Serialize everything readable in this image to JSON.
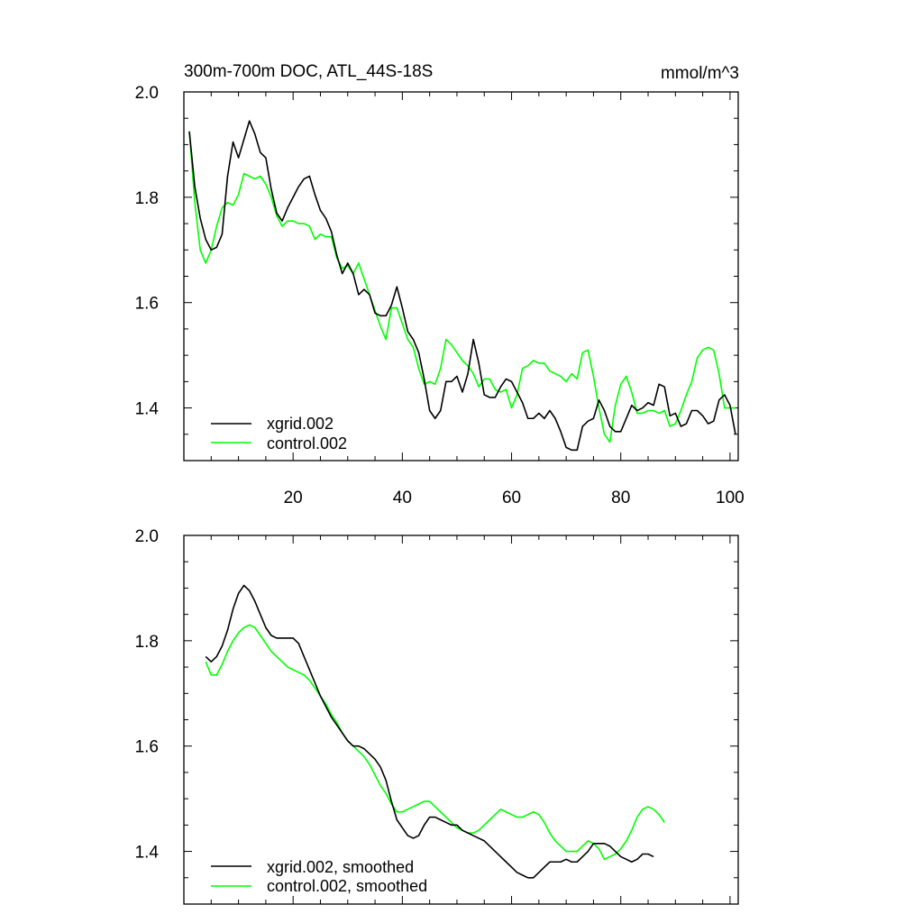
{
  "chart_data": [
    {
      "type": "line",
      "title": "300m-700m DOC, ATL_44S-18S",
      "units": "mmol/m^3",
      "xlabel": "",
      "ylabel": "",
      "xlim": [
        0,
        101.5
      ],
      "ylim": [
        1.3,
        2.0
      ],
      "xticks": [
        20,
        40,
        60,
        80,
        100
      ],
      "yticks": [
        1.4,
        1.6,
        1.8,
        2.0
      ],
      "ytick_labels": [
        "1.4",
        "1.6",
        "1.8",
        "2.0"
      ],
      "xtick_labels": [
        "20",
        "40",
        "60",
        "80",
        "100"
      ],
      "legend_position": "bottom-left",
      "series": [
        {
          "name": "xgrid.002",
          "color": "#000000",
          "x_start": 1,
          "values": [
            1.925,
            1.82,
            1.76,
            1.72,
            1.7,
            1.705,
            1.73,
            1.84,
            1.905,
            1.875,
            1.91,
            1.945,
            1.92,
            1.885,
            1.875,
            1.815,
            1.77,
            1.755,
            1.78,
            1.8,
            1.82,
            1.835,
            1.84,
            1.805,
            1.775,
            1.76,
            1.735,
            1.69,
            1.655,
            1.675,
            1.655,
            1.615,
            1.625,
            1.615,
            1.58,
            1.575,
            1.575,
            1.595,
            1.63,
            1.59,
            1.545,
            1.53,
            1.505,
            1.455,
            1.395,
            1.38,
            1.395,
            1.45,
            1.45,
            1.46,
            1.43,
            1.465,
            1.53,
            1.485,
            1.425,
            1.42,
            1.42,
            1.44,
            1.455,
            1.45,
            1.43,
            1.41,
            1.38,
            1.38,
            1.39,
            1.38,
            1.395,
            1.38,
            1.355,
            1.325,
            1.32,
            1.32,
            1.365,
            1.375,
            1.38,
            1.415,
            1.395,
            1.365,
            1.355,
            1.355,
            1.38,
            1.405,
            1.395,
            1.4,
            1.41,
            1.405,
            1.445,
            1.44,
            1.385,
            1.39,
            1.365,
            1.37,
            1.395,
            1.395,
            1.385,
            1.37,
            1.375,
            1.415,
            1.425,
            1.405,
            1.35
          ]
        },
        {
          "name": "control.002",
          "color": "#00ff00",
          "x_start": 1,
          "values": [
            1.925,
            1.79,
            1.7,
            1.675,
            1.7,
            1.745,
            1.78,
            1.79,
            1.785,
            1.805,
            1.845,
            1.84,
            1.835,
            1.84,
            1.825,
            1.8,
            1.765,
            1.745,
            1.755,
            1.755,
            1.75,
            1.75,
            1.745,
            1.72,
            1.73,
            1.725,
            1.725,
            1.685,
            1.665,
            1.67,
            1.655,
            1.675,
            1.645,
            1.615,
            1.585,
            1.555,
            1.53,
            1.59,
            1.59,
            1.56,
            1.53,
            1.515,
            1.475,
            1.445,
            1.45,
            1.445,
            1.475,
            1.53,
            1.52,
            1.505,
            1.49,
            1.48,
            1.465,
            1.44,
            1.455,
            1.455,
            1.435,
            1.43,
            1.435,
            1.4,
            1.425,
            1.475,
            1.48,
            1.49,
            1.485,
            1.485,
            1.47,
            1.465,
            1.46,
            1.45,
            1.465,
            1.455,
            1.505,
            1.51,
            1.46,
            1.4,
            1.35,
            1.335,
            1.405,
            1.445,
            1.46,
            1.43,
            1.39,
            1.39,
            1.395,
            1.395,
            1.39,
            1.395,
            1.365,
            1.37,
            1.395,
            1.425,
            1.45,
            1.495,
            1.51,
            1.515,
            1.51,
            1.465,
            1.4,
            1.4,
            1.4
          ]
        }
      ]
    },
    {
      "type": "line",
      "title": "",
      "units": "",
      "xlabel": "",
      "ylabel": "",
      "xlim": [
        0,
        101.5
      ],
      "ylim": [
        1.3,
        2.0
      ],
      "xticks": [
        20,
        40,
        60,
        80,
        100
      ],
      "yticks": [
        1.4,
        1.6,
        1.8,
        2.0
      ],
      "ytick_labels": [
        "1.4",
        "1.6",
        "1.8",
        "2.0"
      ],
      "xtick_labels": [],
      "legend_position": "bottom-left",
      "series": [
        {
          "name": "xgrid.002, smoothed",
          "color": "#000000",
          "x_start": 4,
          "values": [
            1.77,
            1.76,
            1.77,
            1.79,
            1.82,
            1.86,
            1.89,
            1.905,
            1.895,
            1.875,
            1.85,
            1.825,
            1.81,
            1.805,
            1.805,
            1.805,
            1.805,
            1.795,
            1.77,
            1.745,
            1.72,
            1.695,
            1.675,
            1.655,
            1.64,
            1.625,
            1.61,
            1.6,
            1.6,
            1.595,
            1.585,
            1.575,
            1.56,
            1.535,
            1.495,
            1.46,
            1.445,
            1.43,
            1.425,
            1.43,
            1.45,
            1.465,
            1.465,
            1.46,
            1.455,
            1.45,
            1.45,
            1.44,
            1.435,
            1.43,
            1.425,
            1.42,
            1.41,
            1.4,
            1.39,
            1.38,
            1.37,
            1.36,
            1.355,
            1.35,
            1.35,
            1.36,
            1.37,
            1.38,
            1.38,
            1.38,
            1.385,
            1.38,
            1.38,
            1.39,
            1.4,
            1.415,
            1.415,
            1.415,
            1.41,
            1.4,
            1.39,
            1.385,
            1.38,
            1.385,
            1.395,
            1.395,
            1.39
          ]
        },
        {
          "name": "control.002, smoothed",
          "color": "#00ff00",
          "x_start": 4,
          "values": [
            1.76,
            1.735,
            1.735,
            1.755,
            1.78,
            1.8,
            1.815,
            1.825,
            1.83,
            1.825,
            1.81,
            1.795,
            1.78,
            1.77,
            1.76,
            1.75,
            1.745,
            1.74,
            1.735,
            1.725,
            1.71,
            1.695,
            1.68,
            1.66,
            1.645,
            1.625,
            1.61,
            1.6,
            1.59,
            1.58,
            1.565,
            1.545,
            1.525,
            1.51,
            1.49,
            1.475,
            1.475,
            1.48,
            1.485,
            1.49,
            1.495,
            1.495,
            1.485,
            1.475,
            1.465,
            1.455,
            1.445,
            1.44,
            1.435,
            1.435,
            1.44,
            1.45,
            1.46,
            1.47,
            1.48,
            1.475,
            1.47,
            1.465,
            1.465,
            1.47,
            1.475,
            1.47,
            1.455,
            1.435,
            1.42,
            1.41,
            1.4,
            1.4,
            1.4,
            1.41,
            1.42,
            1.415,
            1.405,
            1.385,
            1.39,
            1.395,
            1.405,
            1.42,
            1.44,
            1.465,
            1.48,
            1.485,
            1.48,
            1.47,
            1.455
          ]
        }
      ]
    }
  ]
}
